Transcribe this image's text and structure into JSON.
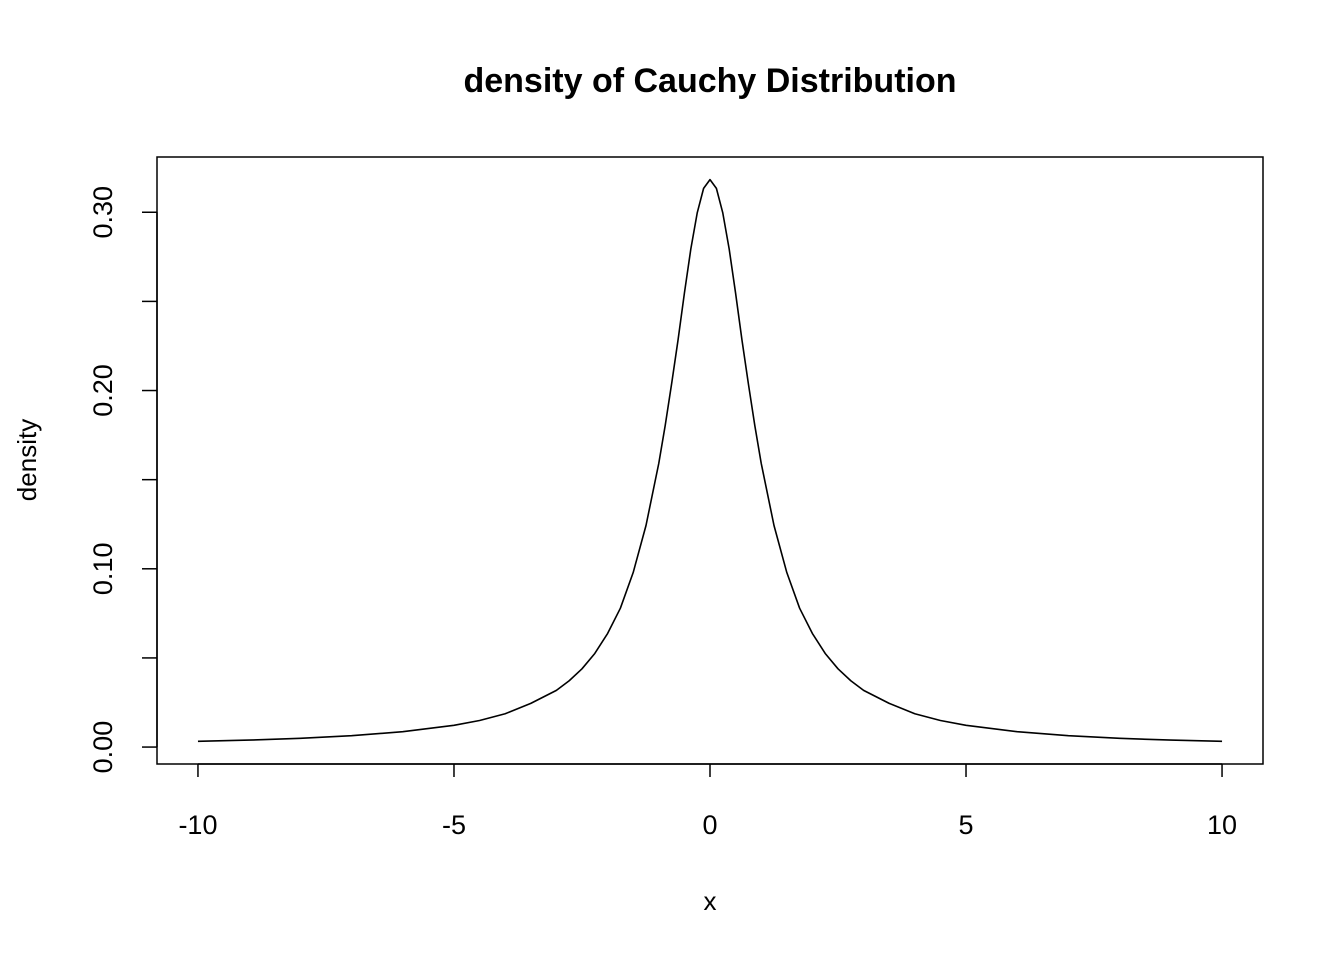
{
  "chart_data": {
    "type": "line",
    "title": "density of Cauchy Distribution",
    "xlabel": "x",
    "ylabel": "density",
    "xlim": [
      -10.8,
      10.8
    ],
    "ylim": [
      -0.0095,
      0.331
    ],
    "x_ticks": [
      -10,
      -5,
      0,
      5,
      10
    ],
    "x_tick_labels": [
      "-10",
      "-5",
      "0",
      "5",
      "10"
    ],
    "y_ticks": [
      0.0,
      0.05,
      0.1,
      0.15,
      0.2,
      0.25,
      0.3
    ],
    "y_tick_labels": [
      "0.00",
      "",
      "0.10",
      "",
      "0.20",
      "",
      "0.30"
    ],
    "grid": false,
    "series": [
      {
        "color": "#000000",
        "x": [
          -10,
          -9,
          -8,
          -7,
          -6,
          -5,
          -4.5,
          -4,
          -3.5,
          -3,
          -2.75,
          -2.5,
          -2.25,
          -2,
          -1.75,
          -1.5,
          -1.25,
          -1,
          -0.875,
          -0.75,
          -0.625,
          -0.5,
          -0.375,
          -0.25,
          -0.125,
          0,
          0.125,
          0.25,
          0.375,
          0.5,
          0.625,
          0.75,
          0.875,
          1,
          1.25,
          1.5,
          1.75,
          2,
          2.25,
          2.5,
          2.75,
          3,
          3.5,
          4,
          4.5,
          5,
          6,
          7,
          8,
          9,
          10
        ],
        "y": [
          0.0032,
          0.0039,
          0.0049,
          0.0064,
          0.0086,
          0.0122,
          0.0149,
          0.0187,
          0.0245,
          0.0318,
          0.0372,
          0.0439,
          0.0525,
          0.0637,
          0.0779,
          0.0979,
          0.1243,
          0.1592,
          0.1804,
          0.2037,
          0.2282,
          0.2546,
          0.2793,
          0.2996,
          0.3134,
          0.3183,
          0.3134,
          0.2996,
          0.2793,
          0.2546,
          0.2282,
          0.2037,
          0.1804,
          0.1592,
          0.1243,
          0.0979,
          0.0779,
          0.0637,
          0.0525,
          0.0439,
          0.0372,
          0.0318,
          0.0245,
          0.0187,
          0.0149,
          0.0122,
          0.0086,
          0.0064,
          0.0049,
          0.0039,
          0.0032
        ]
      }
    ]
  }
}
